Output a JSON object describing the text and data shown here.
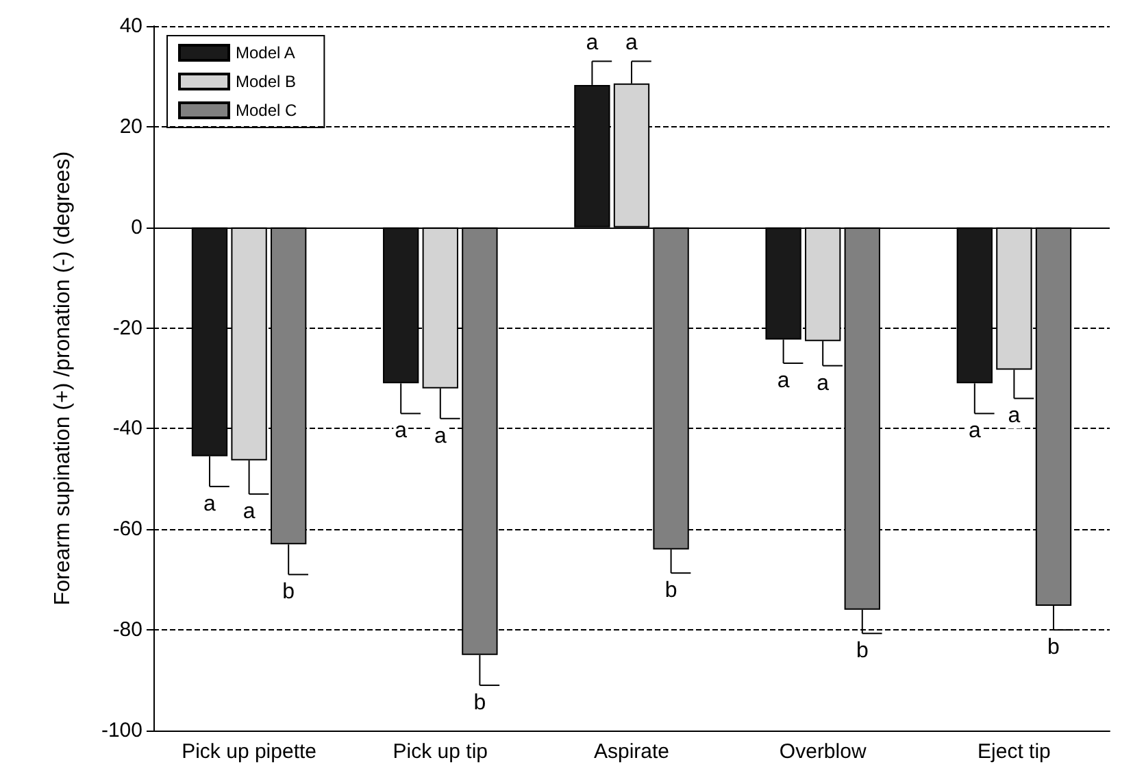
{
  "chart_data": {
    "type": "bar",
    "ylabel": "Forearm supination (+) /pronation (-) (degrees)",
    "categories": [
      "Pick up pipette",
      "Pick up tip",
      "Aspirate",
      "Overblow",
      "Eject tip"
    ],
    "series": [
      {
        "name": "Model A",
        "color": "#1a1a1a",
        "values": [
          -45.5,
          -31,
          28.3,
          -22.3,
          -31
        ],
        "errors": [
          [
            -51.5,
            -45.5
          ],
          [
            -37,
            -31
          ],
          [
            28.3,
            33
          ],
          [
            -27,
            -22.3
          ],
          [
            -37,
            -31
          ]
        ],
        "value_labels": [
          "a",
          "a",
          "a",
          "a",
          "a"
        ]
      },
      {
        "name": "Model B",
        "color": "#d3d3d3",
        "values": [
          -46.3,
          -32,
          28.6,
          -22.6,
          -28.3
        ],
        "errors": [
          [
            -53,
            -46.3
          ],
          [
            -38,
            -32
          ],
          [
            28.6,
            33
          ],
          [
            -27.5,
            -22.6
          ],
          [
            -34,
            -28.3
          ]
        ],
        "value_labels": [
          "a",
          "a",
          "a",
          "a",
          "a"
        ]
      },
      {
        "name": "Model C",
        "color": "#808080",
        "values": [
          -63,
          -85,
          -64,
          -76,
          -75.2
        ],
        "errors": [
          [
            -69,
            -63
          ],
          [
            -91,
            -85
          ],
          [
            -68.7,
            -64
          ],
          [
            -80.7,
            -76
          ],
          [
            -80,
            -75.2
          ]
        ],
        "value_labels": [
          "b",
          "b",
          "b",
          "b",
          "b"
        ]
      }
    ],
    "ylim": [
      -100,
      40
    ],
    "yticks": [
      -100,
      -80,
      -60,
      -40,
      -20,
      0,
      20,
      40
    ],
    "grid": "y",
    "line_style": "dashed",
    "legend": "top left",
    "ref_lines": [
      {
        "axis": "y",
        "value": 0
      }
    ]
  }
}
